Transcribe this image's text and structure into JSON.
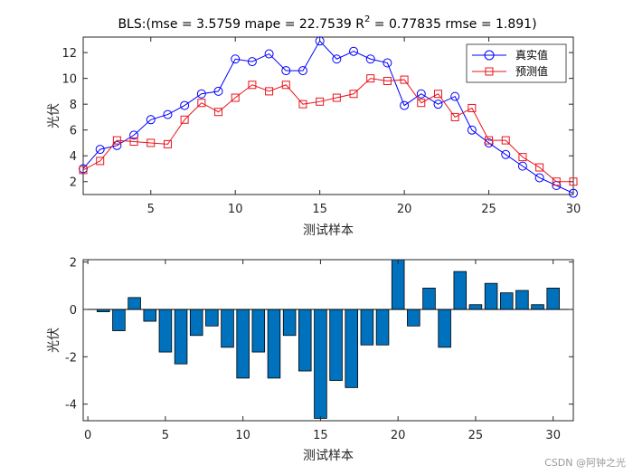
{
  "colors": {
    "true_line": "#0000ff",
    "pred_line": "#e8141c",
    "bar_fill": "#0072bd",
    "bar_edge": "#000000",
    "axis": "#262626"
  },
  "watermark": "CSDN @阿钟之光",
  "chart_data": [
    {
      "type": "line",
      "title_prefix": "BLS:(mse = 3.5759 mape = 22.7539  R",
      "title_sup": "2",
      "title_suffix": " = 0.77835 rmse = 1.891)",
      "xlabel": "测试样本",
      "ylabel": "光伏",
      "xlim": [
        1,
        30
      ],
      "ylim": [
        1.0,
        13.2
      ],
      "xticks": [
        5,
        10,
        15,
        20,
        25,
        30
      ],
      "yticks": [
        2,
        4,
        6,
        8,
        10,
        12
      ],
      "legend_position": "top-right",
      "x": [
        1,
        2,
        3,
        4,
        5,
        6,
        7,
        8,
        9,
        10,
        11,
        12,
        13,
        14,
        15,
        16,
        17,
        18,
        19,
        20,
        21,
        22,
        23,
        24,
        25,
        26,
        27,
        28,
        29,
        30
      ],
      "series": [
        {
          "name": "真实值",
          "marker": "circle",
          "values": [
            3.0,
            4.5,
            4.8,
            5.6,
            6.8,
            7.2,
            7.9,
            8.8,
            9.0,
            11.5,
            11.3,
            11.9,
            10.6,
            10.6,
            12.9,
            11.5,
            12.1,
            11.5,
            11.2,
            7.9,
            8.8,
            8.0,
            8.6,
            6.0,
            5.0,
            4.1,
            3.2,
            2.3,
            1.7,
            1.1
          ]
        },
        {
          "name": "预测值",
          "marker": "square",
          "values": [
            2.9,
            3.6,
            5.2,
            5.1,
            5.0,
            4.9,
            6.8,
            8.1,
            7.4,
            8.5,
            9.5,
            9.0,
            9.5,
            8.0,
            8.2,
            8.5,
            8.8,
            10.0,
            9.8,
            9.9,
            8.1,
            8.8,
            7.0,
            7.7,
            5.2,
            5.2,
            3.9,
            3.1,
            2.0,
            2.0
          ]
        }
      ]
    },
    {
      "type": "bar",
      "xlabel": "测试样本",
      "ylabel": "光伏",
      "xlim": [
        -0.3,
        31.3
      ],
      "ylim": [
        -4.7,
        2.1
      ],
      "xticks": [
        0,
        5,
        10,
        15,
        20,
        25,
        30
      ],
      "yticks": [
        -4,
        -2,
        0,
        2
      ],
      "x": [
        1,
        2,
        3,
        4,
        5,
        6,
        7,
        8,
        9,
        10,
        11,
        12,
        13,
        14,
        15,
        16,
        17,
        18,
        19,
        20,
        21,
        22,
        23,
        24,
        25,
        26,
        27,
        28,
        29,
        30
      ],
      "values": [
        -0.1,
        -0.9,
        0.5,
        -0.5,
        -1.8,
        -2.3,
        -1.1,
        -0.7,
        -1.6,
        -2.9,
        -1.8,
        -2.9,
        -1.1,
        -2.6,
        -4.6,
        -3.0,
        -3.3,
        -1.5,
        -1.5,
        2.1,
        -0.7,
        0.9,
        -1.6,
        1.6,
        0.2,
        1.1,
        0.7,
        0.8,
        0.2,
        0.9
      ]
    }
  ]
}
